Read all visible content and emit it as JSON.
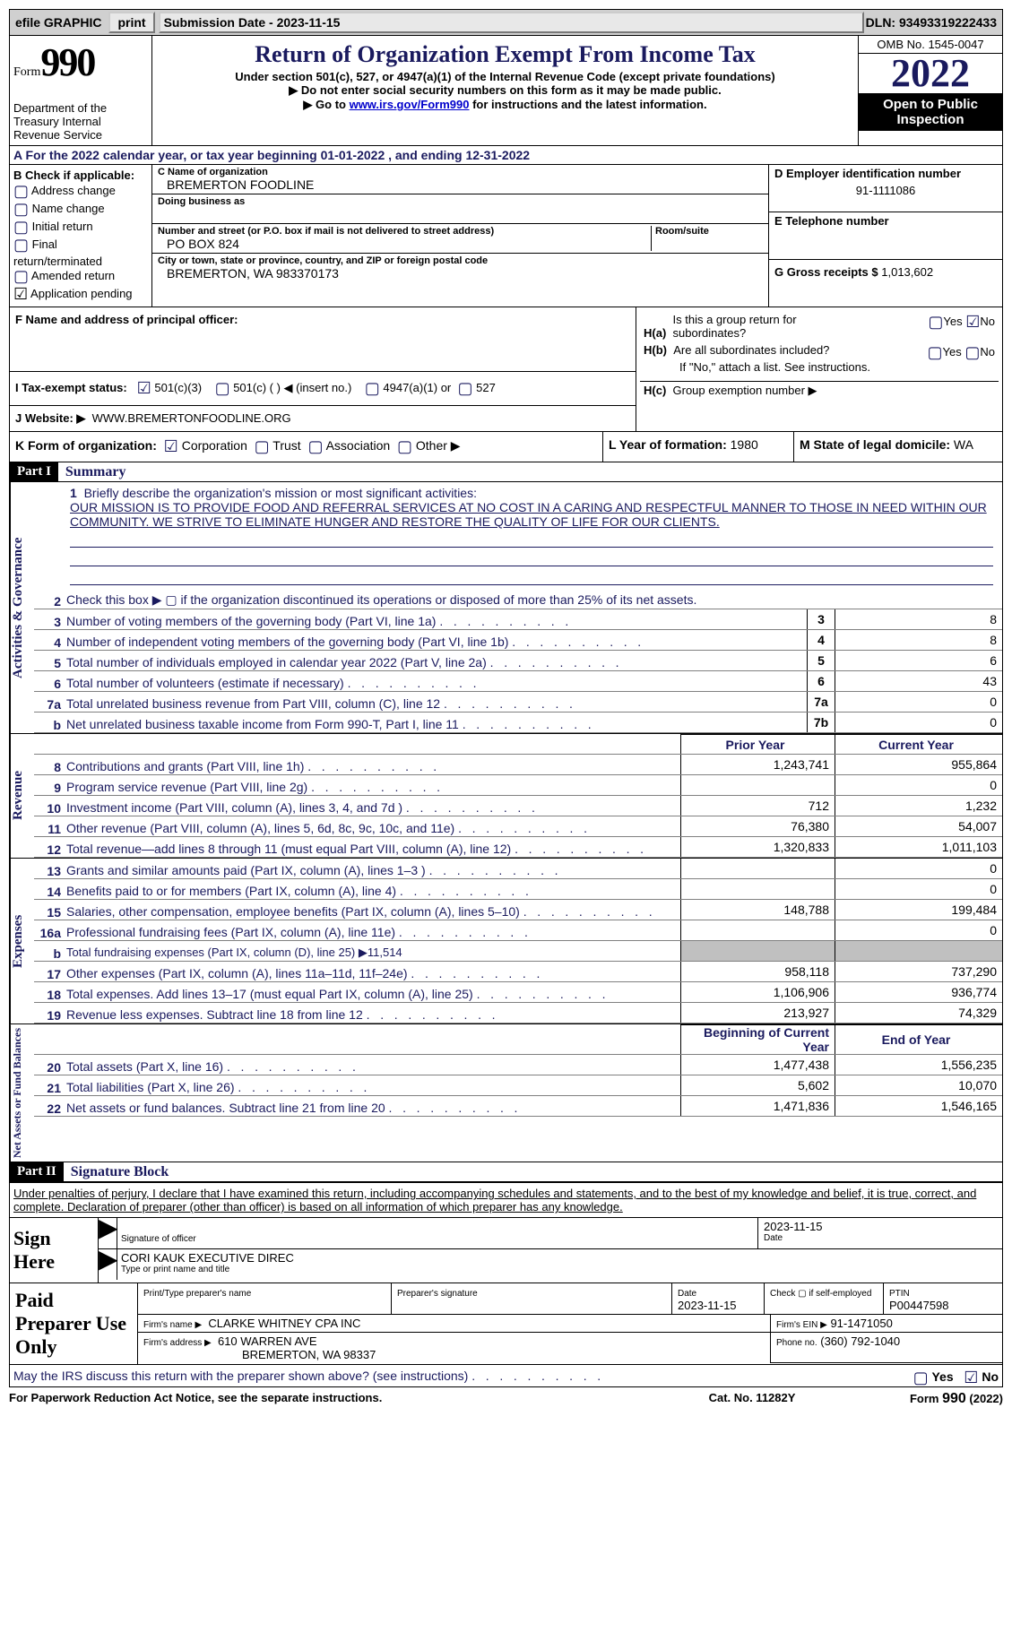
{
  "topbar": {
    "efile_label": "efile GRAPHIC",
    "print_btn": "print",
    "sub_date_label": "Submission Date - 2023-11-15",
    "dln_label": "DLN: 93493319222433"
  },
  "header": {
    "form_word": "Form",
    "form_num": "990",
    "dept": "Department of the Treasury Internal Revenue Service",
    "title": "Return of Organization Exempt From Income Tax",
    "subtitle": "Under section 501(c), 527, or 4947(a)(1) of the Internal Revenue Code (except private foundations)",
    "note1": "▶ Do not enter social security numbers on this form as it may be made public.",
    "note2_pre": "▶ Go to ",
    "note2_link": "www.irs.gov/Form990",
    "note2_post": " for instructions and the latest information.",
    "omb": "OMB No. 1545-0047",
    "year": "2022",
    "open": "Open to Public Inspection"
  },
  "line_a": "A For the 2022 calendar year, or tax year beginning 01-01-2022    , and ending 12-31-2022",
  "box_b": {
    "label": "B Check if applicable:",
    "items": [
      "Address change",
      "Name change",
      "Initial return",
      "Final return/terminated",
      "Amended return",
      "Application pending"
    ]
  },
  "box_c": {
    "name_label": "C Name of organization",
    "name": "BREMERTON FOODLINE",
    "dba_label": "Doing business as",
    "addr_label": "Number and street (or P.O. box if mail is not delivered to street address)",
    "room_label": "Room/suite",
    "addr": "PO BOX 824",
    "city_label": "City or town, state or province, country, and ZIP or foreign postal code",
    "city": "BREMERTON, WA  983370173"
  },
  "box_d": {
    "ein_label": "D Employer identification number",
    "ein": "91-1111086",
    "phone_label": "E Telephone number",
    "gross_label": "G Gross receipts $",
    "gross": "1,013,602"
  },
  "box_f": {
    "label": "F  Name and address of principal officer:"
  },
  "box_h": {
    "ha_label": "Is this a group return for subordinates?",
    "ha_pre": "H(a)",
    "hb_pre": "H(b)",
    "hb_label": "Are all subordinates included?",
    "hb_note": "If \"No,\" attach a list. See instructions.",
    "hc_pre": "H(c)",
    "hc_label": "Group exemption number ▶",
    "yes": "Yes",
    "no": "No"
  },
  "line_i": {
    "label": "I    Tax-exempt status:",
    "o501c3": "501(c)(3)",
    "o501c": "501(c) (  ) ◀ (insert no.)",
    "o4947": "4947(a)(1) or",
    "o527": "527"
  },
  "line_j": {
    "label": "J    Website: ▶",
    "val": "WWW.BREMERTONFOODLINE.ORG"
  },
  "line_k": {
    "label": "K Form of organization:",
    "corp": "Corporation",
    "trust": "Trust",
    "assoc": "Association",
    "other": "Other ▶",
    "l_label": "L Year of formation:",
    "l_val": "1980",
    "m_label": "M State of legal domicile:",
    "m_val": "WA"
  },
  "part1": {
    "hdr": "Part I",
    "title": "Summary",
    "q1_label": "Briefly describe the organization's mission or most significant activities:",
    "q1_text": "OUR MISSION IS TO PROVIDE FOOD AND REFERRAL SERVICES AT NO COST IN A CARING AND RESPECTFUL MANNER TO THOSE IN NEED WITHIN OUR COMMUNITY. WE STRIVE TO ELIMINATE HUNGER AND RESTORE THE QUALITY OF LIFE FOR OUR CLIENTS.",
    "tab_gov": "Activities & Governance",
    "tab_rev": "Revenue",
    "tab_exp": "Expenses",
    "tab_net": "Net Assets or Fund Balances",
    "lines_gov": [
      {
        "n": "2",
        "d": "Check this box ▶ ▢  if the organization discontinued its operations or disposed of more than 25% of its net assets."
      },
      {
        "n": "3",
        "d": "Number of voting members of the governing body (Part VI, line 1a)",
        "box": "3",
        "v": "8"
      },
      {
        "n": "4",
        "d": "Number of independent voting members of the governing body (Part VI, line 1b)",
        "box": "4",
        "v": "8"
      },
      {
        "n": "5",
        "d": "Total number of individuals employed in calendar year 2022 (Part V, line 2a)",
        "box": "5",
        "v": "6"
      },
      {
        "n": "6",
        "d": "Total number of volunteers (estimate if necessary)",
        "box": "6",
        "v": "43"
      },
      {
        "n": "7a",
        "d": "Total unrelated business revenue from Part VIII, column (C), line 12",
        "box": "7a",
        "v": "0"
      },
      {
        "n": "b",
        "d": "Net unrelated business taxable income from Form 990-T, Part I, line 11",
        "box": "7b",
        "v": "0"
      }
    ],
    "prior_label": "Prior Year",
    "current_label": "Current Year",
    "lines_rev": [
      {
        "n": "8",
        "d": "Contributions and grants (Part VIII, line 1h)",
        "p": "1,243,741",
        "c": "955,864"
      },
      {
        "n": "9",
        "d": "Program service revenue (Part VIII, line 2g)",
        "p": "",
        "c": "0"
      },
      {
        "n": "10",
        "d": "Investment income (Part VIII, column (A), lines 3, 4, and 7d )",
        "p": "712",
        "c": "1,232"
      },
      {
        "n": "11",
        "d": "Other revenue (Part VIII, column (A), lines 5, 6d, 8c, 9c, 10c, and 11e)",
        "p": "76,380",
        "c": "54,007"
      },
      {
        "n": "12",
        "d": "Total revenue—add lines 8 through 11 (must equal Part VIII, column (A), line 12)",
        "p": "1,320,833",
        "c": "1,011,103"
      }
    ],
    "lines_exp": [
      {
        "n": "13",
        "d": "Grants and similar amounts paid (Part IX, column (A), lines 1–3 )",
        "p": "",
        "c": "0"
      },
      {
        "n": "14",
        "d": "Benefits paid to or for members (Part IX, column (A), line 4)",
        "p": "",
        "c": "0"
      },
      {
        "n": "15",
        "d": "Salaries, other compensation, employee benefits (Part IX, column (A), lines 5–10)",
        "p": "148,788",
        "c": "199,484"
      },
      {
        "n": "16a",
        "d": "Professional fundraising fees (Part IX, column (A), line 11e)",
        "p": "",
        "c": "0"
      },
      {
        "n": "b",
        "d": "Total fundraising expenses (Part IX, column (D), line 25) ▶11,514",
        "grey": true
      },
      {
        "n": "17",
        "d": "Other expenses (Part IX, column (A), lines 11a–11d, 11f–24e)",
        "p": "958,118",
        "c": "737,290"
      },
      {
        "n": "18",
        "d": "Total expenses. Add lines 13–17 (must equal Part IX, column (A), line 25)",
        "p": "1,106,906",
        "c": "936,774"
      },
      {
        "n": "19",
        "d": "Revenue less expenses. Subtract line 18 from line 12",
        "p": "213,927",
        "c": "74,329"
      }
    ],
    "begin_label": "Beginning of Current Year",
    "end_label": "End of Year",
    "lines_net": [
      {
        "n": "20",
        "d": "Total assets (Part X, line 16)",
        "p": "1,477,438",
        "c": "1,556,235"
      },
      {
        "n": "21",
        "d": "Total liabilities (Part X, line 26)",
        "p": "5,602",
        "c": "10,070"
      },
      {
        "n": "22",
        "d": "Net assets or fund balances. Subtract line 21 from line 20",
        "p": "1,471,836",
        "c": "1,546,165"
      }
    ]
  },
  "part2": {
    "hdr": "Part II",
    "title": "Signature Block",
    "penalty": "Under penalties of perjury, I declare that I have examined this return, including accompanying schedules and statements, and to the best of my knowledge and belief, it is true, correct, and complete. Declaration of preparer (other than officer) is based on all information of which preparer has any knowledge.",
    "sign_here": "Sign Here",
    "sig_officer": "Signature of officer",
    "sig_date": "2023-11-15",
    "date_label": "Date",
    "typed_name": "CORI KAUK  EXECUTIVE DIREC",
    "typed_label": "Type or print name and title"
  },
  "preparer": {
    "label": "Paid Preparer Use Only",
    "print_name_label": "Print/Type preparer's name",
    "sig_label": "Preparer's signature",
    "date_label": "Date",
    "date": "2023-11-15",
    "check_label": "Check ▢ if self-employed",
    "ptin_label": "PTIN",
    "ptin": "P00447598",
    "firm_name_label": "Firm's name    ▶",
    "firm_name": "CLARKE WHITNEY CPA INC",
    "firm_ein_label": "Firm's EIN ▶",
    "firm_ein": "91-1471050",
    "firm_addr_label": "Firm's address ▶",
    "firm_addr1": "610 WARREN AVE",
    "firm_addr2": "BREMERTON, WA  98337",
    "phone_label": "Phone no.",
    "phone": "(360) 792-1040"
  },
  "discuss": {
    "q": "May the IRS discuss this return with the preparer shown above? (see instructions)",
    "yes": "Yes",
    "no": "No"
  },
  "footer": {
    "pra": "For Paperwork Reduction Act Notice, see the separate instructions.",
    "cat": "Cat. No. 11282Y",
    "form": "Form 990 (2022)"
  },
  "colors": {
    "darkblue": "#1a1a5e",
    "link": "#0000cc"
  }
}
